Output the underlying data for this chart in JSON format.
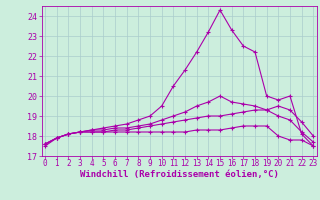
{
  "xlabel": "Windchill (Refroidissement éolien,°C)",
  "bg_color": "#cceedd",
  "grid_color": "#aacccc",
  "line_color": "#aa00aa",
  "x": [
    0,
    1,
    2,
    3,
    4,
    5,
    6,
    7,
    8,
    9,
    10,
    11,
    12,
    13,
    14,
    15,
    16,
    17,
    18,
    19,
    20,
    21,
    22,
    23
  ],
  "line1": [
    17.5,
    17.9,
    18.1,
    18.2,
    18.2,
    18.2,
    18.2,
    18.2,
    18.2,
    18.2,
    18.2,
    18.2,
    18.2,
    18.3,
    18.3,
    18.3,
    18.4,
    18.5,
    18.5,
    18.5,
    18.0,
    17.8,
    17.8,
    17.5
  ],
  "line2": [
    17.6,
    17.9,
    18.1,
    18.2,
    18.2,
    18.2,
    18.3,
    18.3,
    18.4,
    18.5,
    18.6,
    18.7,
    18.8,
    18.9,
    19.0,
    19.0,
    19.1,
    19.2,
    19.3,
    19.3,
    19.0,
    18.8,
    18.2,
    17.7
  ],
  "line3": [
    17.6,
    17.9,
    18.1,
    18.2,
    18.3,
    18.3,
    18.4,
    18.4,
    18.5,
    18.6,
    18.8,
    19.0,
    19.2,
    19.5,
    19.7,
    20.0,
    19.7,
    19.6,
    19.5,
    19.3,
    19.5,
    19.3,
    18.7,
    18.0
  ],
  "line4": [
    17.6,
    17.9,
    18.1,
    18.2,
    18.3,
    18.4,
    18.5,
    18.6,
    18.8,
    19.0,
    19.5,
    20.5,
    21.3,
    22.2,
    23.2,
    24.3,
    23.3,
    22.5,
    22.2,
    20.0,
    19.8,
    20.0,
    18.1,
    17.5
  ],
  "ylim": [
    17.0,
    24.5
  ],
  "yticks": [
    17,
    18,
    19,
    20,
    21,
    22,
    23,
    24
  ],
  "xticks": [
    0,
    1,
    2,
    3,
    4,
    5,
    6,
    7,
    8,
    9,
    10,
    11,
    12,
    13,
    14,
    15,
    16,
    17,
    18,
    19,
    20,
    21,
    22,
    23
  ],
  "font_size": 6.5,
  "lw": 0.8,
  "marker_size": 3.5
}
